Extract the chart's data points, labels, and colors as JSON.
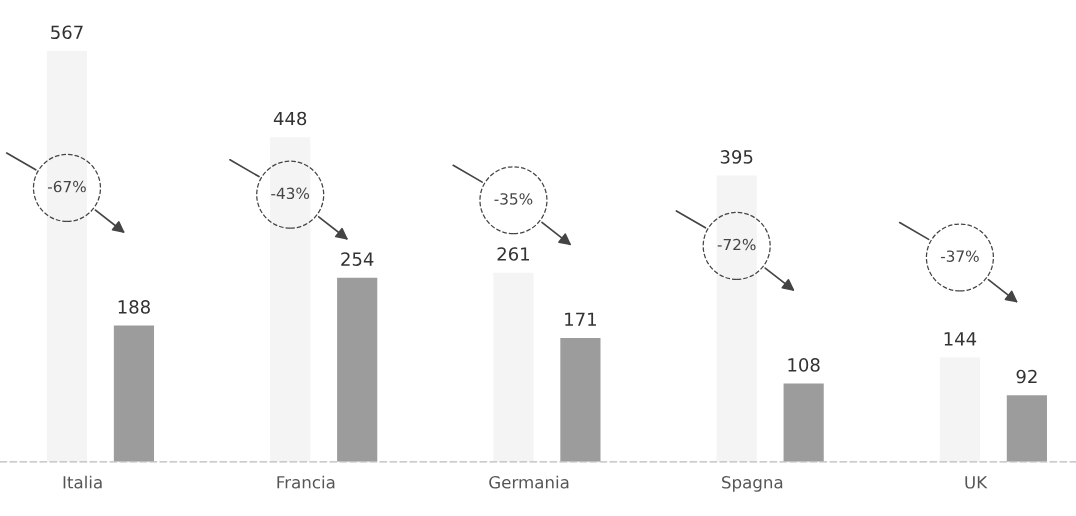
{
  "chart_data": {
    "type": "bar",
    "categories": [
      "Italia",
      "Francia",
      "Germania",
      "Spagna",
      "UK"
    ],
    "series": [
      {
        "color": "#f4f4f4",
        "values": [
          567,
          448,
          261,
          395,
          144
        ]
      },
      {
        "color": "#9c9c9c",
        "values": [
          188,
          254,
          171,
          108,
          92
        ]
      }
    ],
    "data_labels": true,
    "annotations": [
      "-67%",
      "-43%",
      "-35%",
      "-72%",
      "-37%"
    ],
    "grid": false
  }
}
